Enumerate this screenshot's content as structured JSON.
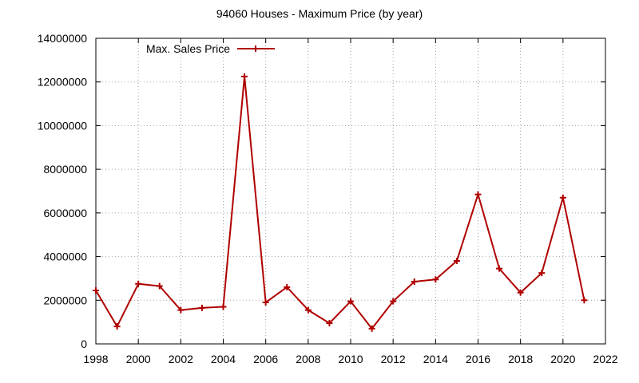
{
  "chart_data": {
    "type": "line",
    "title": "94060 Houses - Maximum Price (by year)",
    "xlabel": "",
    "ylabel": "",
    "xlim": [
      1998,
      2022
    ],
    "ylim": [
      0,
      14000000
    ],
    "x_ticks": [
      "1998",
      "2000",
      "2002",
      "2004",
      "2006",
      "2008",
      "2010",
      "2012",
      "2014",
      "2016",
      "2018",
      "2020",
      "2022"
    ],
    "y_ticks": [
      "0",
      "2000000",
      "4000000",
      "6000000",
      "8000000",
      "10000000",
      "12000000",
      "14000000"
    ],
    "grid": true,
    "legend_position": "top-left",
    "series": [
      {
        "name": "Max. Sales Price",
        "color": "#b00000",
        "marker": "plus",
        "x": [
          1998,
          1999,
          2000,
          2001,
          2002,
          2003,
          2004,
          2005,
          2006,
          2007,
          2008,
          2009,
          2010,
          2011,
          2012,
          2013,
          2014,
          2015,
          2016,
          2017,
          2018,
          2019,
          2020,
          2021
        ],
        "values": [
          2450000,
          800000,
          2750000,
          2650000,
          1550000,
          1650000,
          1700000,
          12250000,
          1900000,
          2600000,
          1550000,
          950000,
          1950000,
          700000,
          1950000,
          2850000,
          2950000,
          3800000,
          6850000,
          3450000,
          2350000,
          3250000,
          6700000,
          2000000
        ]
      }
    ]
  }
}
